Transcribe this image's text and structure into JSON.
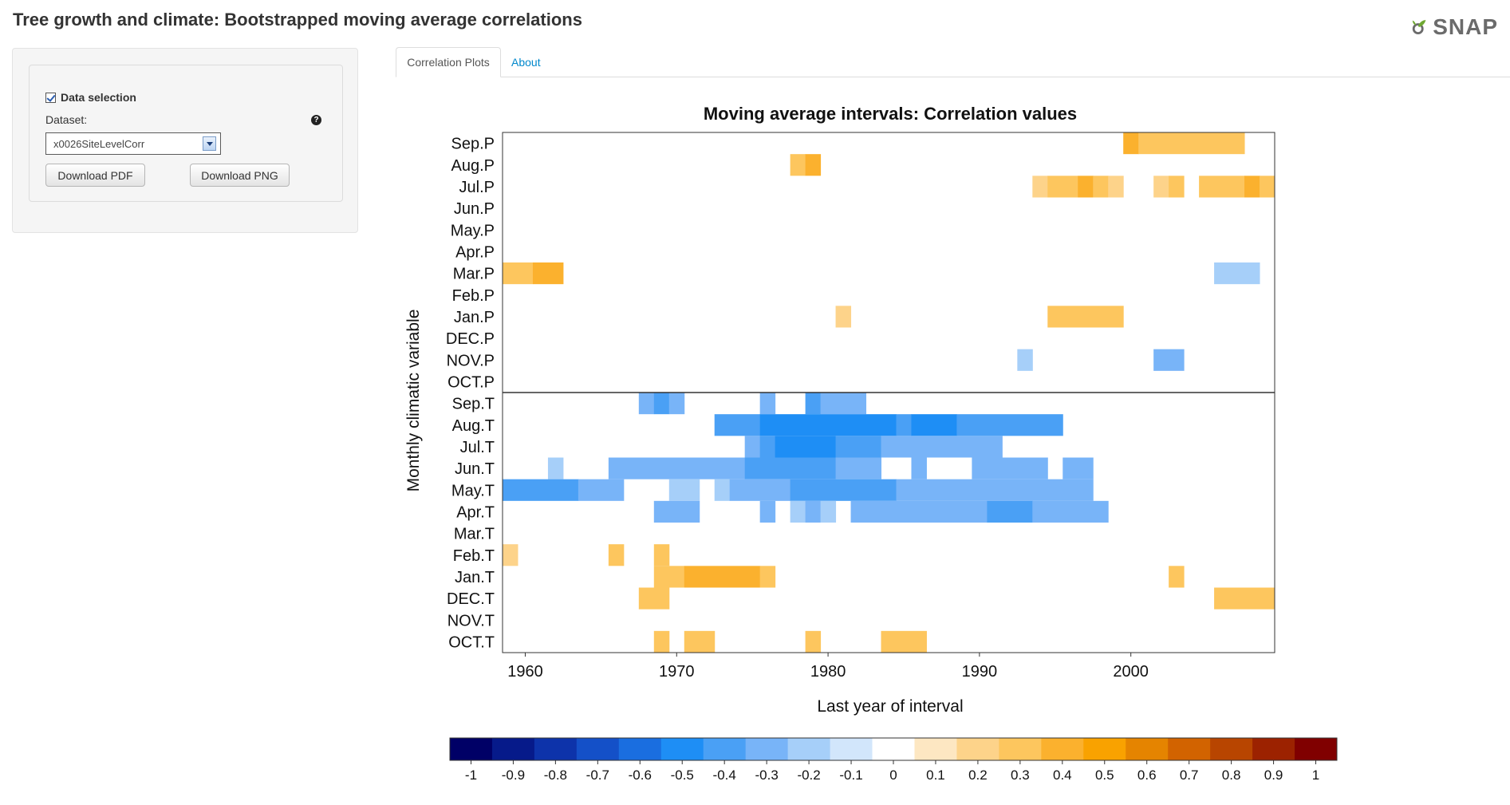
{
  "app": {
    "title": "Tree growth and climate: Bootstrapped moving average correlations",
    "logo_text": "SNAP",
    "logo_icon": "snap-leaf-icon"
  },
  "sidebar": {
    "data_selection_label": "Data selection",
    "data_selection_checked": true,
    "dataset_label": "Dataset:",
    "dataset_value": "x0026SiteLevelCorr",
    "help_icon": "question-circle-icon",
    "download_pdf_label": "Download PDF",
    "download_png_label": "Download PNG"
  },
  "tabs": [
    {
      "label": "Correlation Plots",
      "active": true
    },
    {
      "label": "About",
      "active": false
    }
  ],
  "chart_data": {
    "type": "heatmap",
    "title": "Moving average intervals: Correlation values",
    "xlabel": "Last year of interval",
    "ylabel": "Monthly climatic variable",
    "x_ticks": [
      1960,
      1970,
      1980,
      1990,
      2000
    ],
    "x_range": [
      1958.5,
      2009.5
    ],
    "y_categories": [
      "Sep.P",
      "Aug.P",
      "Jul.P",
      "Jun.P",
      "May.P",
      "Apr.P",
      "Mar.P",
      "Feb.P",
      "Jan.P",
      "DEC.P",
      "NOV.P",
      "OCT.P",
      "Sep.T",
      "Aug.T",
      "Jul.T",
      "Jun.T",
      "May.T",
      "Apr.T",
      "Mar.T",
      "Feb.T",
      "Jan.T",
      "DEC.T",
      "NOV.T",
      "OCT.T"
    ],
    "divider_between": [
      "OCT.P",
      "Sep.T"
    ],
    "color_scale": {
      "labels": [
        "-1",
        "-0.9",
        "-0.8",
        "-0.7",
        "-0.6",
        "-0.5",
        "-0.4",
        "-0.3",
        "-0.2",
        "-0.1",
        "0",
        "0.1",
        "0.2",
        "0.3",
        "0.4",
        "0.5",
        "0.6",
        "0.7",
        "0.8",
        "0.9",
        "1"
      ],
      "colors": [
        "#000066",
        "#061a8a",
        "#0d33aa",
        "#1450c8",
        "#1a6ee0",
        "#1e8ef5",
        "#4aa0f5",
        "#78b4f8",
        "#a6cff9",
        "#d2e6fb",
        "#ffffff",
        "#fde7c2",
        "#fdd38a",
        "#fdc65e",
        "#fbb12e",
        "#f9a200",
        "#e58400",
        "#d26300",
        "#b84500",
        "#9c2200",
        "#800000"
      ]
    },
    "cells": [
      {
        "var": "Sep.P",
        "x0": 1999.5,
        "x1": 2000.5,
        "v": 0.4
      },
      {
        "var": "Sep.P",
        "x0": 2000.5,
        "x1": 2007.5,
        "v": 0.3
      },
      {
        "var": "Aug.P",
        "x0": 1977.5,
        "x1": 1978.5,
        "v": 0.3
      },
      {
        "var": "Aug.P",
        "x0": 1978.5,
        "x1": 1979.5,
        "v": 0.4
      },
      {
        "var": "Jul.P",
        "x0": 1993.5,
        "x1": 1994.5,
        "v": 0.2
      },
      {
        "var": "Jul.P",
        "x0": 1994.5,
        "x1": 1996.5,
        "v": 0.3
      },
      {
        "var": "Jul.P",
        "x0": 1996.5,
        "x1": 1997.5,
        "v": 0.4
      },
      {
        "var": "Jul.P",
        "x0": 1997.5,
        "x1": 1998.5,
        "v": 0.3
      },
      {
        "var": "Jul.P",
        "x0": 1998.5,
        "x1": 1999.5,
        "v": 0.2
      },
      {
        "var": "Jul.P",
        "x0": 2001.5,
        "x1": 2002.5,
        "v": 0.2
      },
      {
        "var": "Jul.P",
        "x0": 2002.5,
        "x1": 2003.5,
        "v": 0.3
      },
      {
        "var": "Jul.P",
        "x0": 2004.5,
        "x1": 2007.5,
        "v": 0.3
      },
      {
        "var": "Jul.P",
        "x0": 2007.5,
        "x1": 2008.5,
        "v": 0.4
      },
      {
        "var": "Jul.P",
        "x0": 2008.5,
        "x1": 2009.5,
        "v": 0.3
      },
      {
        "var": "Mar.P",
        "x0": 1958.5,
        "x1": 1960.5,
        "v": 0.3
      },
      {
        "var": "Mar.P",
        "x0": 1960.5,
        "x1": 1962.5,
        "v": 0.4
      },
      {
        "var": "Mar.P",
        "x0": 2005.5,
        "x1": 2008.5,
        "v": -0.2
      },
      {
        "var": "Jan.P",
        "x0": 1980.5,
        "x1": 1981.5,
        "v": 0.2
      },
      {
        "var": "Jan.P",
        "x0": 1994.5,
        "x1": 1999.5,
        "v": 0.3
      },
      {
        "var": "NOV.P",
        "x0": 1992.5,
        "x1": 1993.5,
        "v": -0.2
      },
      {
        "var": "NOV.P",
        "x0": 2001.5,
        "x1": 2003.5,
        "v": -0.3
      },
      {
        "var": "Sep.T",
        "x0": 1967.5,
        "x1": 1968.5,
        "v": -0.3
      },
      {
        "var": "Sep.T",
        "x0": 1968.5,
        "x1": 1969.5,
        "v": -0.4
      },
      {
        "var": "Sep.T",
        "x0": 1969.5,
        "x1": 1970.5,
        "v": -0.3
      },
      {
        "var": "Sep.T",
        "x0": 1975.5,
        "x1": 1976.5,
        "v": -0.3
      },
      {
        "var": "Sep.T",
        "x0": 1978.5,
        "x1": 1979.5,
        "v": -0.4
      },
      {
        "var": "Sep.T",
        "x0": 1979.5,
        "x1": 1982.5,
        "v": -0.3
      },
      {
        "var": "Aug.T",
        "x0": 1972.5,
        "x1": 1975.5,
        "v": -0.4
      },
      {
        "var": "Aug.T",
        "x0": 1975.5,
        "x1": 1984.5,
        "v": -0.5
      },
      {
        "var": "Aug.T",
        "x0": 1984.5,
        "x1": 1985.5,
        "v": -0.4
      },
      {
        "var": "Aug.T",
        "x0": 1985.5,
        "x1": 1988.5,
        "v": -0.5
      },
      {
        "var": "Aug.T",
        "x0": 1988.5,
        "x1": 1995.5,
        "v": -0.4
      },
      {
        "var": "Jul.T",
        "x0": 1974.5,
        "x1": 1975.5,
        "v": -0.3
      },
      {
        "var": "Jul.T",
        "x0": 1975.5,
        "x1": 1976.5,
        "v": -0.4
      },
      {
        "var": "Jul.T",
        "x0": 1976.5,
        "x1": 1980.5,
        "v": -0.5
      },
      {
        "var": "Jul.T",
        "x0": 1980.5,
        "x1": 1983.5,
        "v": -0.4
      },
      {
        "var": "Jul.T",
        "x0": 1983.5,
        "x1": 1991.5,
        "v": -0.3
      },
      {
        "var": "Jun.T",
        "x0": 1961.5,
        "x1": 1962.5,
        "v": -0.2
      },
      {
        "var": "Jun.T",
        "x0": 1965.5,
        "x1": 1974.5,
        "v": -0.3
      },
      {
        "var": "Jun.T",
        "x0": 1974.5,
        "x1": 1980.5,
        "v": -0.4
      },
      {
        "var": "Jun.T",
        "x0": 1980.5,
        "x1": 1983.5,
        "v": -0.3
      },
      {
        "var": "Jun.T",
        "x0": 1985.5,
        "x1": 1986.5,
        "v": -0.3
      },
      {
        "var": "Jun.T",
        "x0": 1989.5,
        "x1": 1994.5,
        "v": -0.3
      },
      {
        "var": "Jun.T",
        "x0": 1995.5,
        "x1": 1997.5,
        "v": -0.3
      },
      {
        "var": "May.T",
        "x0": 1958.5,
        "x1": 1963.5,
        "v": -0.4
      },
      {
        "var": "May.T",
        "x0": 1963.5,
        "x1": 1966.5,
        "v": -0.3
      },
      {
        "var": "May.T",
        "x0": 1969.5,
        "x1": 1971.5,
        "v": -0.2
      },
      {
        "var": "May.T",
        "x0": 1972.5,
        "x1": 1973.5,
        "v": -0.2
      },
      {
        "var": "May.T",
        "x0": 1973.5,
        "x1": 1977.5,
        "v": -0.3
      },
      {
        "var": "May.T",
        "x0": 1977.5,
        "x1": 1984.5,
        "v": -0.4
      },
      {
        "var": "May.T",
        "x0": 1984.5,
        "x1": 1997.5,
        "v": -0.3
      },
      {
        "var": "Apr.T",
        "x0": 1968.5,
        "x1": 1971.5,
        "v": -0.3
      },
      {
        "var": "Apr.T",
        "x0": 1975.5,
        "x1": 1976.5,
        "v": -0.3
      },
      {
        "var": "Apr.T",
        "x0": 1977.5,
        "x1": 1978.5,
        "v": -0.2
      },
      {
        "var": "Apr.T",
        "x0": 1978.5,
        "x1": 1979.5,
        "v": -0.3
      },
      {
        "var": "Apr.T",
        "x0": 1979.5,
        "x1": 1980.5,
        "v": -0.2
      },
      {
        "var": "Apr.T",
        "x0": 1981.5,
        "x1": 1982.5,
        "v": -0.3
      },
      {
        "var": "Apr.T",
        "x0": 1982.5,
        "x1": 1990.5,
        "v": -0.3
      },
      {
        "var": "Apr.T",
        "x0": 1990.5,
        "x1": 1993.5,
        "v": -0.4
      },
      {
        "var": "Apr.T",
        "x0": 1993.5,
        "x1": 1998.5,
        "v": -0.3
      },
      {
        "var": "Feb.T",
        "x0": 1958.5,
        "x1": 1959.5,
        "v": 0.2
      },
      {
        "var": "Feb.T",
        "x0": 1965.5,
        "x1": 1966.5,
        "v": 0.3
      },
      {
        "var": "Feb.T",
        "x0": 1968.5,
        "x1": 1969.5,
        "v": 0.3
      },
      {
        "var": "Jan.T",
        "x0": 1968.5,
        "x1": 1970.5,
        "v": 0.3
      },
      {
        "var": "Jan.T",
        "x0": 1970.5,
        "x1": 1975.5,
        "v": 0.4
      },
      {
        "var": "Jan.T",
        "x0": 1975.5,
        "x1": 1976.5,
        "v": 0.3
      },
      {
        "var": "Jan.T",
        "x0": 2002.5,
        "x1": 2003.5,
        "v": 0.3
      },
      {
        "var": "DEC.T",
        "x0": 1967.5,
        "x1": 1969.5,
        "v": 0.3
      },
      {
        "var": "DEC.T",
        "x0": 2005.5,
        "x1": 2009.5,
        "v": 0.3
      },
      {
        "var": "OCT.T",
        "x0": 1968.5,
        "x1": 1969.5,
        "v": 0.3
      },
      {
        "var": "OCT.T",
        "x0": 1970.5,
        "x1": 1972.5,
        "v": 0.3
      },
      {
        "var": "OCT.T",
        "x0": 1978.5,
        "x1": 1979.5,
        "v": 0.3
      },
      {
        "var": "OCT.T",
        "x0": 1983.5,
        "x1": 1986.5,
        "v": 0.3
      }
    ]
  }
}
